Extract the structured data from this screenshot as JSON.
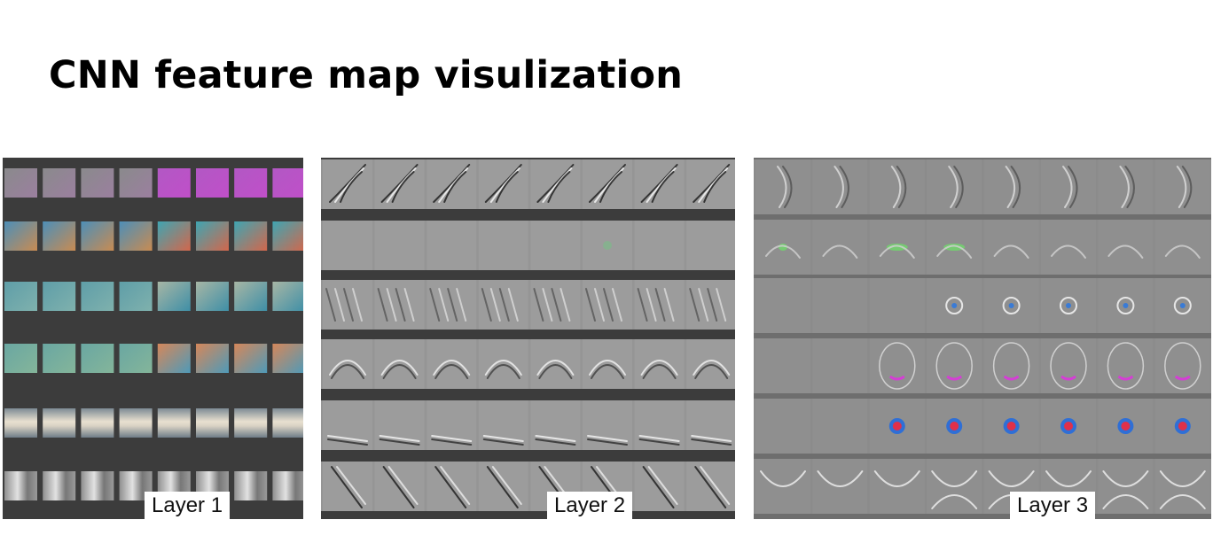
{
  "title": "CNN feature map visulization",
  "panels": [
    {
      "label": "Layer 1",
      "rows": 6,
      "cols": 8,
      "background": "#3c3c3c",
      "tile_background": "#9a9a9a"
    },
    {
      "label": "Layer 2",
      "rows": 6,
      "cols": 8,
      "background": "#3c3c3c",
      "tile_background": "#9c9c9c"
    },
    {
      "label": "Layer 3",
      "rows": 6,
      "cols": 8,
      "background": "#6e6e6e",
      "tile_background": "#8f8f8f"
    }
  ]
}
